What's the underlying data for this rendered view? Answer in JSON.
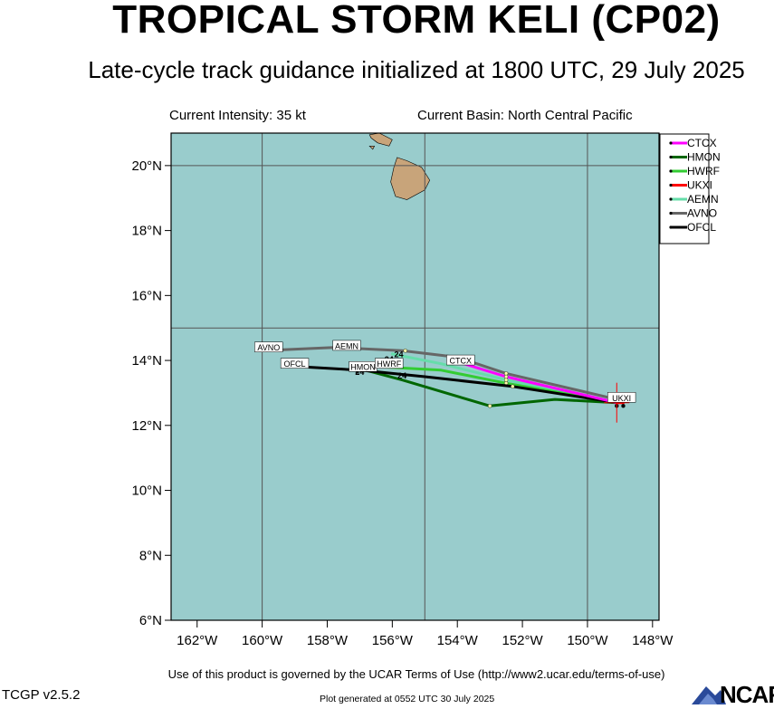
{
  "header": {
    "title": "TROPICAL STORM KELI (CP02)",
    "subtitle": "Late-cycle track guidance initialized at 1800 UTC, 29 July 2025",
    "intensity": "Current Intensity: 35 kt",
    "basin": "Current Basin: North Central Pacific"
  },
  "footer": {
    "terms": "Use of this product is governed by the UCAR Terms of Use (http://www2.ucar.edu/terms-of-use)",
    "version": "TCGP v2.5.2",
    "generated": "Plot generated at 0552 UTC   30 July 2025",
    "logo": "NCAR"
  },
  "colors": {
    "ocean": "#99cccc",
    "land": "#c8a47a",
    "grid": "#555555",
    "CTCX": "#ff00ff",
    "HMON": "#006600",
    "HWRF": "#33cc33",
    "UKXI": "#ff0000",
    "AEMN": "#66ddaa",
    "AVNO": "#666666",
    "OFCL": "#000000"
  },
  "map": {
    "lon_range": [
      -162.8,
      -147.8
    ],
    "lat_range": [
      6,
      21
    ],
    "lon_ticks": [
      {
        "value": -162,
        "label": "162°W"
      },
      {
        "value": -160,
        "label": "160°W"
      },
      {
        "value": -158,
        "label": "158°W"
      },
      {
        "value": -156,
        "label": "156°W"
      },
      {
        "value": -154,
        "label": "154°W"
      },
      {
        "value": -152,
        "label": "152°W"
      },
      {
        "value": -150,
        "label": "150°W"
      },
      {
        "value": -148,
        "label": "148°W"
      }
    ],
    "lat_ticks": [
      {
        "value": 6,
        "label": "6°N"
      },
      {
        "value": 8,
        "label": "8°N"
      },
      {
        "value": 10,
        "label": "10°N"
      },
      {
        "value": 12,
        "label": "12°N"
      },
      {
        "value": 14,
        "label": "14°N"
      },
      {
        "value": 16,
        "label": "16°N"
      },
      {
        "value": 18,
        "label": "18°N"
      },
      {
        "value": 20,
        "label": "20°N"
      }
    ],
    "grid_lons": [
      -160,
      -155,
      -150
    ],
    "grid_lats": [
      15,
      20
    ],
    "current_position": {
      "lon": -149.1,
      "lat": 12.7
    }
  },
  "chart_data": {
    "type": "line",
    "x_units": "longitude (deg, negative = W)",
    "y_units": "latitude (deg N)",
    "series": [
      {
        "name": "CTCX",
        "points": [
          [
            -149.1,
            12.7
          ],
          [
            -152.5,
            13.5
          ],
          [
            -153.8,
            13.9
          ]
        ],
        "label_at": [
          -153.9,
          14.0
        ],
        "marks": [
          [
            -152.5,
            13.5
          ]
        ]
      },
      {
        "name": "HMON",
        "points": [
          [
            -149.1,
            12.7
          ],
          [
            -151.0,
            12.8
          ],
          [
            -153.0,
            12.6
          ],
          [
            -155.7,
            13.4
          ],
          [
            -157.2,
            13.8
          ]
        ],
        "label_at": [
          -156.9,
          13.8
        ],
        "marks": [
          [
            -153.0,
            12.6
          ]
        ],
        "hour_labels": [
          {
            "text": "24",
            "lon": -157.0,
            "lat": 13.55
          }
        ]
      },
      {
        "name": "HWRF",
        "points": [
          [
            -149.1,
            12.7
          ],
          [
            -152.5,
            13.3
          ],
          [
            -154.5,
            13.7
          ],
          [
            -156.3,
            13.8
          ]
        ],
        "label_at": [
          -156.1,
          13.9
        ],
        "marks": [
          [
            -152.5,
            13.3
          ]
        ],
        "hour_labels": [
          {
            "text": "24",
            "lon": -155.7,
            "lat": 13.45
          }
        ]
      },
      {
        "name": "UKXI",
        "points": [
          [
            -149.1,
            12.7
          ],
          [
            -148.9,
            12.7
          ]
        ],
        "label_at": [
          -148.95,
          12.85
        ],
        "marks": [
          [
            -149.1,
            12.6
          ],
          [
            -148.9,
            12.6
          ]
        ]
      },
      {
        "name": "AEMN",
        "points": [
          [
            -149.1,
            12.7
          ],
          [
            -152.5,
            13.4
          ],
          [
            -154.5,
            13.9
          ],
          [
            -156.0,
            14.2
          ]
        ],
        "label_at": [
          -157.4,
          14.45
        ],
        "marks": [
          [
            -152.5,
            13.4
          ]
        ],
        "hour_labels": [
          {
            "text": "24",
            "lon": -156.1,
            "lat": 13.95
          }
        ]
      },
      {
        "name": "AVNO",
        "points": [
          [
            -149.1,
            12.8
          ],
          [
            -152.5,
            13.6
          ],
          [
            -154.0,
            14.1
          ],
          [
            -155.7,
            14.3
          ],
          [
            -157.8,
            14.4
          ],
          [
            -160.0,
            14.3
          ]
        ],
        "label_at": [
          -159.8,
          14.4
        ],
        "marks": [
          [
            -152.5,
            13.6
          ],
          [
            -155.6,
            14.3
          ]
        ],
        "hour_labels": [
          {
            "text": "24",
            "lon": -155.8,
            "lat": 14.1
          }
        ]
      },
      {
        "name": "OFCL",
        "points": [
          [
            -149.1,
            12.7
          ],
          [
            -152.3,
            13.2
          ],
          [
            -155.0,
            13.5
          ],
          [
            -157.0,
            13.7
          ],
          [
            -158.7,
            13.8
          ]
        ],
        "label_at": [
          -159.0,
          13.9
        ],
        "marks": [
          [
            -152.3,
            13.2
          ]
        ],
        "hour_labels": [
          {
            "text": "24",
            "lon": -157.0,
            "lat": 13.6
          }
        ]
      }
    ],
    "legend": {
      "position": "top-right",
      "order": [
        "CTCX",
        "HMON",
        "HWRF",
        "UKXI",
        "AEMN",
        "AVNO",
        "OFCL"
      ]
    }
  },
  "islands": {
    "big_island": [
      [
        -155.85,
        20.25
      ],
      [
        -155.55,
        20.15
      ],
      [
        -155.1,
        19.95
      ],
      [
        -154.85,
        19.55
      ],
      [
        -155.0,
        19.25
      ],
      [
        -155.55,
        18.95
      ],
      [
        -155.9,
        19.05
      ],
      [
        -156.05,
        19.5
      ],
      [
        -155.95,
        19.95
      ]
    ],
    "maui": [
      [
        -156.7,
        20.95
      ],
      [
        -156.4,
        21.0
      ],
      [
        -156.0,
        20.8
      ],
      [
        -156.1,
        20.6
      ],
      [
        -156.45,
        20.7
      ],
      [
        -156.65,
        20.85
      ]
    ],
    "kahoolawe": [
      [
        -156.7,
        20.6
      ],
      [
        -156.55,
        20.6
      ],
      [
        -156.6,
        20.5
      ]
    ],
    "molokai": [
      [
        -157.3,
        21.2
      ],
      [
        -156.8,
        21.2
      ],
      [
        -156.75,
        21.1
      ],
      [
        -157.25,
        21.08
      ]
    ]
  }
}
